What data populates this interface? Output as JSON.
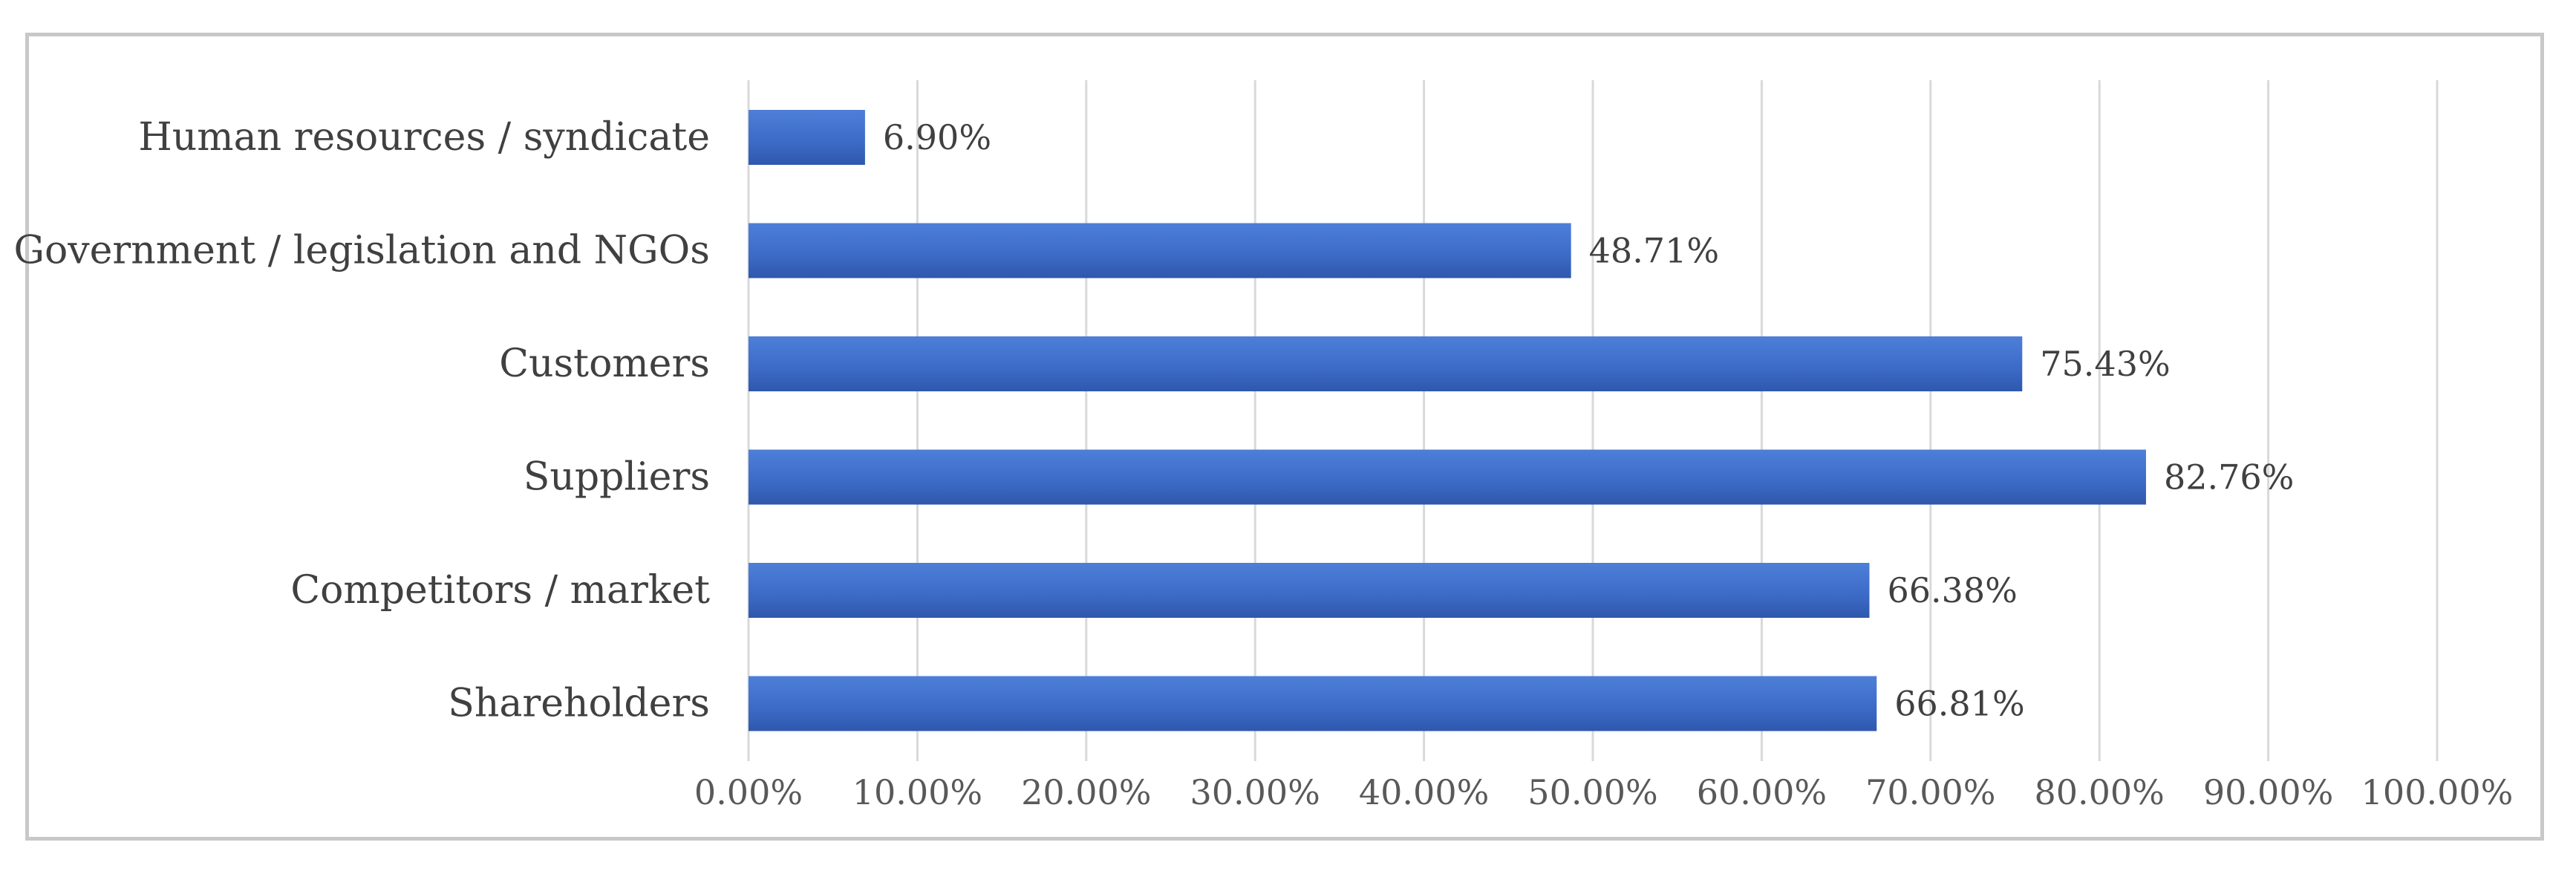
{
  "chart_data": {
    "type": "bar",
    "orientation": "horizontal",
    "categories": [
      "Human resources / syndicate",
      "Government / legislation and NGOs",
      "Customers",
      "Suppliers",
      "Competitors / market",
      "Shareholders"
    ],
    "values": [
      6.9,
      48.71,
      75.43,
      82.76,
      66.38,
      66.81
    ],
    "value_labels": [
      "6.90%",
      "48.71%",
      "75.43%",
      "82.76%",
      "66.38%",
      "66.81%"
    ],
    "xlim": [
      0,
      100
    ],
    "x_ticks": [
      0,
      10,
      20,
      30,
      40,
      50,
      60,
      70,
      80,
      90,
      100
    ],
    "x_tick_labels": [
      "0.00%",
      "10.00%",
      "20.00%",
      "30.00%",
      "40.00%",
      "50.00%",
      "60.00%",
      "70.00%",
      "80.00%",
      "90.00%",
      "100.00%"
    ],
    "title": "",
    "xlabel": "",
    "ylabel": "",
    "grid": "vertical",
    "legend": "none",
    "colors": {
      "bar": "#3d6cc8",
      "bar_light": "#4d7fd9",
      "bar_dark": "#2f58ad",
      "grid": "#d9d9d9",
      "frame": "#c8c8c8"
    }
  }
}
